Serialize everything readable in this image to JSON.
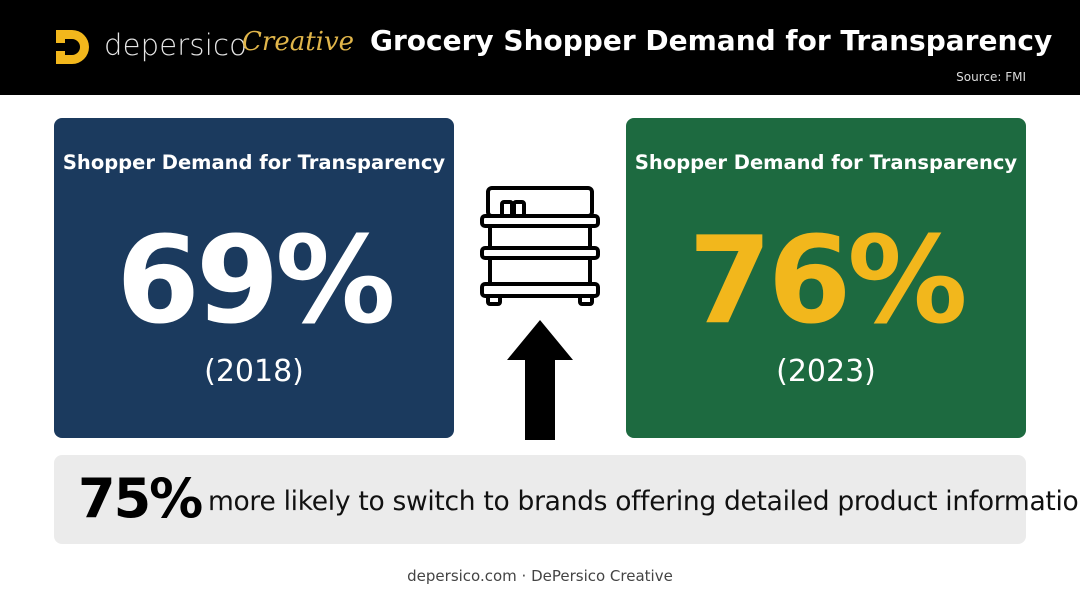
{
  "header": {
    "logo_word": "depersico",
    "logo_script": "Creative",
    "title": "Grocery Shopper Demand for Transparency",
    "source": "Source: FMI"
  },
  "cards": [
    {
      "title": "Shopper Demand for Transparency",
      "value": "69%",
      "year": "(2018)",
      "color": "#1b3a5e",
      "value_color": "#ffffff"
    },
    {
      "title": "Shopper Demand for Transparency",
      "value": "76%",
      "year": "(2023)",
      "color": "#1d6a40",
      "value_color": "#f2b71c"
    }
  ],
  "icons": {
    "center": "shopping-cart-icon",
    "trend": "arrow-up-icon"
  },
  "banner": {
    "number": "75%",
    "text": "more likely to switch to brands offering detailed product information"
  },
  "footer": {
    "text": "depersico.com · DePersico Creative"
  }
}
